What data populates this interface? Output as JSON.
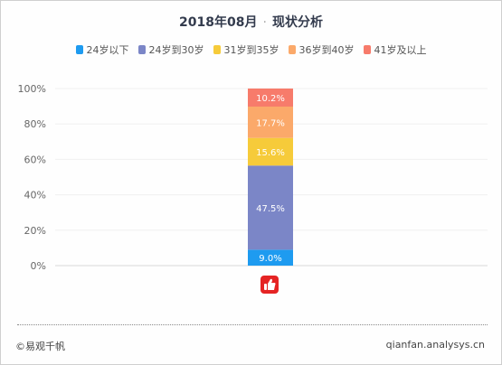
{
  "header": {
    "title_date": "2018年08月",
    "title_sep": "·",
    "title_topic": "现状分析"
  },
  "chart_data": {
    "type": "bar",
    "stacked": true,
    "normalized": true,
    "categories": [
      ""
    ],
    "ylim": [
      0,
      100
    ],
    "yticks": [
      "0%",
      "20%",
      "40%",
      "60%",
      "80%",
      "100%"
    ],
    "grid": true,
    "legend_position": "top",
    "series": [
      {
        "name": "24岁以下",
        "values": [
          9.0
        ],
        "label": "9.0%",
        "color": "#1e9bf0"
      },
      {
        "name": "24岁到30岁",
        "values": [
          47.5
        ],
        "label": "47.5%",
        "color": "#7b86c7"
      },
      {
        "name": "31岁到35岁",
        "values": [
          15.6
        ],
        "label": "15.6%",
        "color": "#f6cb3a"
      },
      {
        "name": "36岁到40岁",
        "values": [
          17.7
        ],
        "label": "17.7%",
        "color": "#fba96a"
      },
      {
        "name": "41岁及以上",
        "values": [
          10.2
        ],
        "label": "10.2%",
        "color": "#f77b6b"
      }
    ],
    "category_icon": "thumbs-up-app-icon",
    "category_icon_color": "#e52323"
  },
  "footer": {
    "copyright": "©易观千帆",
    "site": "qianfan.analysys.cn"
  }
}
